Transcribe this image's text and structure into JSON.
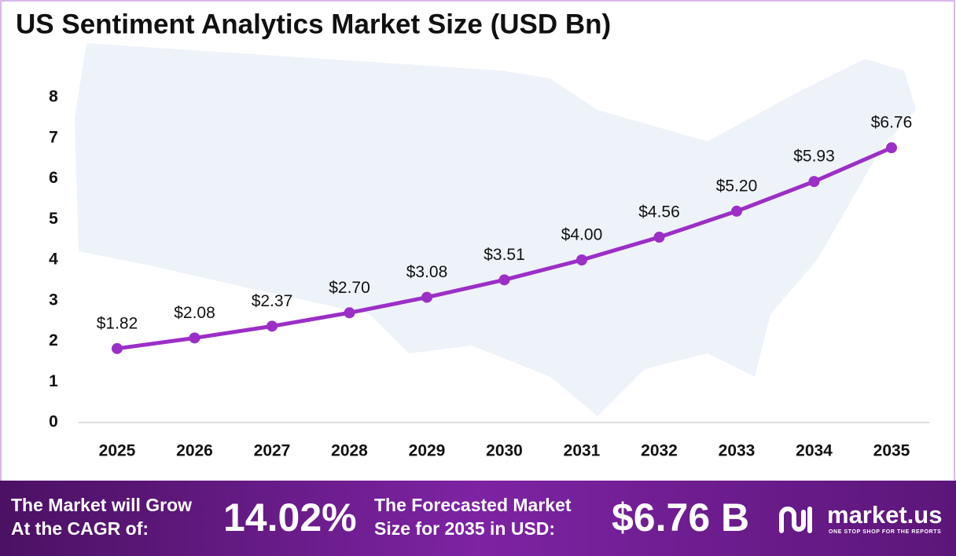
{
  "chart_data": {
    "type": "line",
    "title": "US Sentiment Analytics Market Size (USD Bn)",
    "categories": [
      "2025",
      "2026",
      "2027",
      "2028",
      "2029",
      "2030",
      "2031",
      "2032",
      "2033",
      "2034",
      "2035"
    ],
    "values": [
      1.82,
      2.08,
      2.37,
      2.7,
      3.08,
      3.51,
      4.0,
      4.56,
      5.2,
      5.93,
      6.76
    ],
    "value_labels": [
      "$1.82",
      "$2.08",
      "$2.37",
      "$2.70",
      "$3.08",
      "$3.51",
      "$4.00",
      "$4.56",
      "$5.20",
      "$5.93",
      "$6.76"
    ],
    "color": "#9b2fc6",
    "ylim": [
      0,
      8
    ],
    "yticks": [
      0,
      1,
      2,
      3,
      4,
      5,
      6,
      7,
      8
    ],
    "grid": false
  },
  "footer": {
    "cagr_label": [
      "The Market will Grow",
      "At the CAGR of:"
    ],
    "cagr_value": "14.02%",
    "forecast_label": [
      "The Forecasted Market",
      "Size for 2035 in USD:"
    ],
    "forecast_value": "$6.76 B",
    "brand": "market.us",
    "tagline": "ONE STOP SHOP FOR THE REPORTS"
  }
}
